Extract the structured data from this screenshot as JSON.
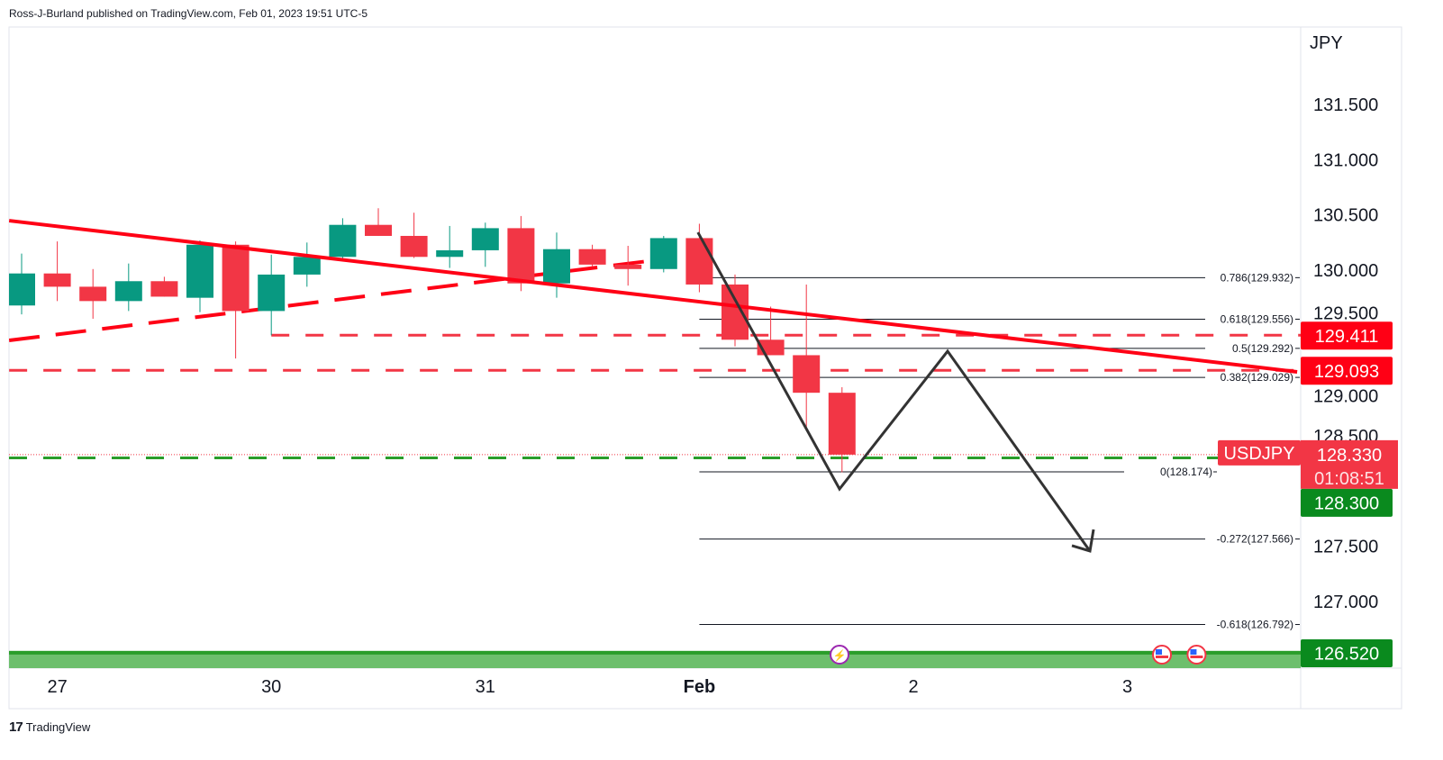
{
  "header": {
    "text": "Ross-J-Burland published on TradingView.com, Feb 01, 2023 19:51 UTC-5"
  },
  "footer": {
    "logo_text": "TradingView"
  },
  "chart_data": {
    "type": "candlestick",
    "symbol": "USDJPY",
    "currency": "JPY",
    "y_ticks": [
      "131.500",
      "131.000",
      "130.500",
      "130.000",
      "129.500",
      "129.000",
      "128.500",
      "127.500",
      "127.000"
    ],
    "y_tick_values": [
      131.5,
      131.0,
      130.5,
      130.0,
      129.5,
      129.0,
      128.5,
      127.5,
      127.0
    ],
    "ylim": [
      126.35,
      132.1
    ],
    "x_ticks": [
      {
        "label": "27",
        "index": 1
      },
      {
        "label": "30",
        "index": 7
      },
      {
        "label": "31",
        "index": 13
      },
      {
        "label": "Feb",
        "index": 19,
        "bold": true
      },
      {
        "label": "2",
        "index": 25
      },
      {
        "label": "3",
        "index": 31
      }
    ],
    "candles": [
      [
        129.68,
        130.15,
        129.6,
        129.97
      ],
      [
        129.97,
        130.26,
        129.72,
        129.85
      ],
      [
        129.85,
        130.01,
        129.56,
        129.72
      ],
      [
        129.72,
        130.06,
        129.63,
        129.9
      ],
      [
        129.9,
        129.94,
        129.76,
        129.76
      ],
      [
        129.75,
        130.27,
        129.62,
        130.23
      ],
      [
        130.23,
        130.26,
        129.2,
        129.63
      ],
      [
        129.63,
        130.14,
        129.41,
        129.96
      ],
      [
        129.96,
        130.25,
        129.85,
        130.12
      ],
      [
        130.12,
        130.47,
        130.1,
        130.41
      ],
      [
        130.41,
        130.56,
        130.31,
        130.31
      ],
      [
        130.31,
        130.52,
        130.11,
        130.12
      ],
      [
        130.12,
        130.4,
        130.02,
        130.18
      ],
      [
        130.18,
        130.43,
        130.03,
        130.38
      ],
      [
        130.38,
        130.49,
        129.81,
        129.88
      ],
      [
        129.88,
        130.34,
        129.75,
        130.19
      ],
      [
        130.19,
        130.23,
        130.03,
        130.05
      ],
      [
        130.05,
        130.22,
        129.86,
        130.01
      ],
      [
        130.01,
        130.31,
        129.98,
        130.29
      ],
      [
        130.29,
        130.42,
        129.8,
        129.87
      ],
      [
        129.87,
        129.96,
        129.31,
        129.37
      ],
      [
        129.37,
        129.67,
        129.23,
        129.23
      ],
      [
        129.23,
        129.87,
        128.55,
        128.89
      ],
      [
        128.89,
        128.94,
        128.17,
        128.33
      ]
    ],
    "candle_fields": [
      "open",
      "high",
      "low",
      "close"
    ],
    "trendline": {
      "from": [
        -0.35,
        130.448
      ],
      "to": [
        35.76,
        129.079
      ]
    },
    "rising_dashed": {
      "from": [
        -0.35,
        129.364
      ],
      "to": [
        17.57,
        130.082
      ]
    },
    "horizontal_levels": [
      {
        "price": 129.411,
        "label": "129.411",
        "start_index": 7
      },
      {
        "price": 129.093,
        "label": "129.093",
        "start_index": -0.35
      }
    ],
    "current": {
      "price": 128.33,
      "label": "128.330",
      "countdown": "01:08:51",
      "bid_level": 128.3,
      "bid_label": "128.300"
    },
    "fib": {
      "start_index": 19,
      "levels": [
        {
          "label": "0.786(129.932)",
          "price": 129.932
        },
        {
          "label": "0.618(129.556)",
          "price": 129.556
        },
        {
          "label": "0.5(129.292)",
          "price": 129.292
        },
        {
          "label": "0.382(129.029)",
          "price": 129.029
        },
        {
          "label": "0(128.174)",
          "price": 128.174
        },
        {
          "label": "-0.272(127.566)",
          "price": 127.566
        },
        {
          "label": "-0.618(126.792)",
          "price": 126.792
        }
      ]
    },
    "projection_path": [
      [
        18.96,
        130.342
      ],
      [
        22.93,
        128.019
      ],
      [
        25.96,
        129.266
      ],
      [
        29.95,
        127.457
      ]
    ],
    "support_zone": {
      "price": 126.52,
      "label": "126.520"
    },
    "event_icons": [
      {
        "icon": "lightning-icon",
        "index": 22.93
      },
      {
        "icon": "us-flag-icon",
        "index": 31.97
      },
      {
        "icon": "us-flag-icon",
        "index": 32.94
      }
    ],
    "colors": {
      "up": "#089981",
      "down": "#f23645",
      "trend": "#ff0015",
      "tag_red": "#ff0015",
      "green_tag": "#0a8a1e",
      "zone": "#6dbf6d",
      "zone_line": "#2a9d2a"
    }
  }
}
